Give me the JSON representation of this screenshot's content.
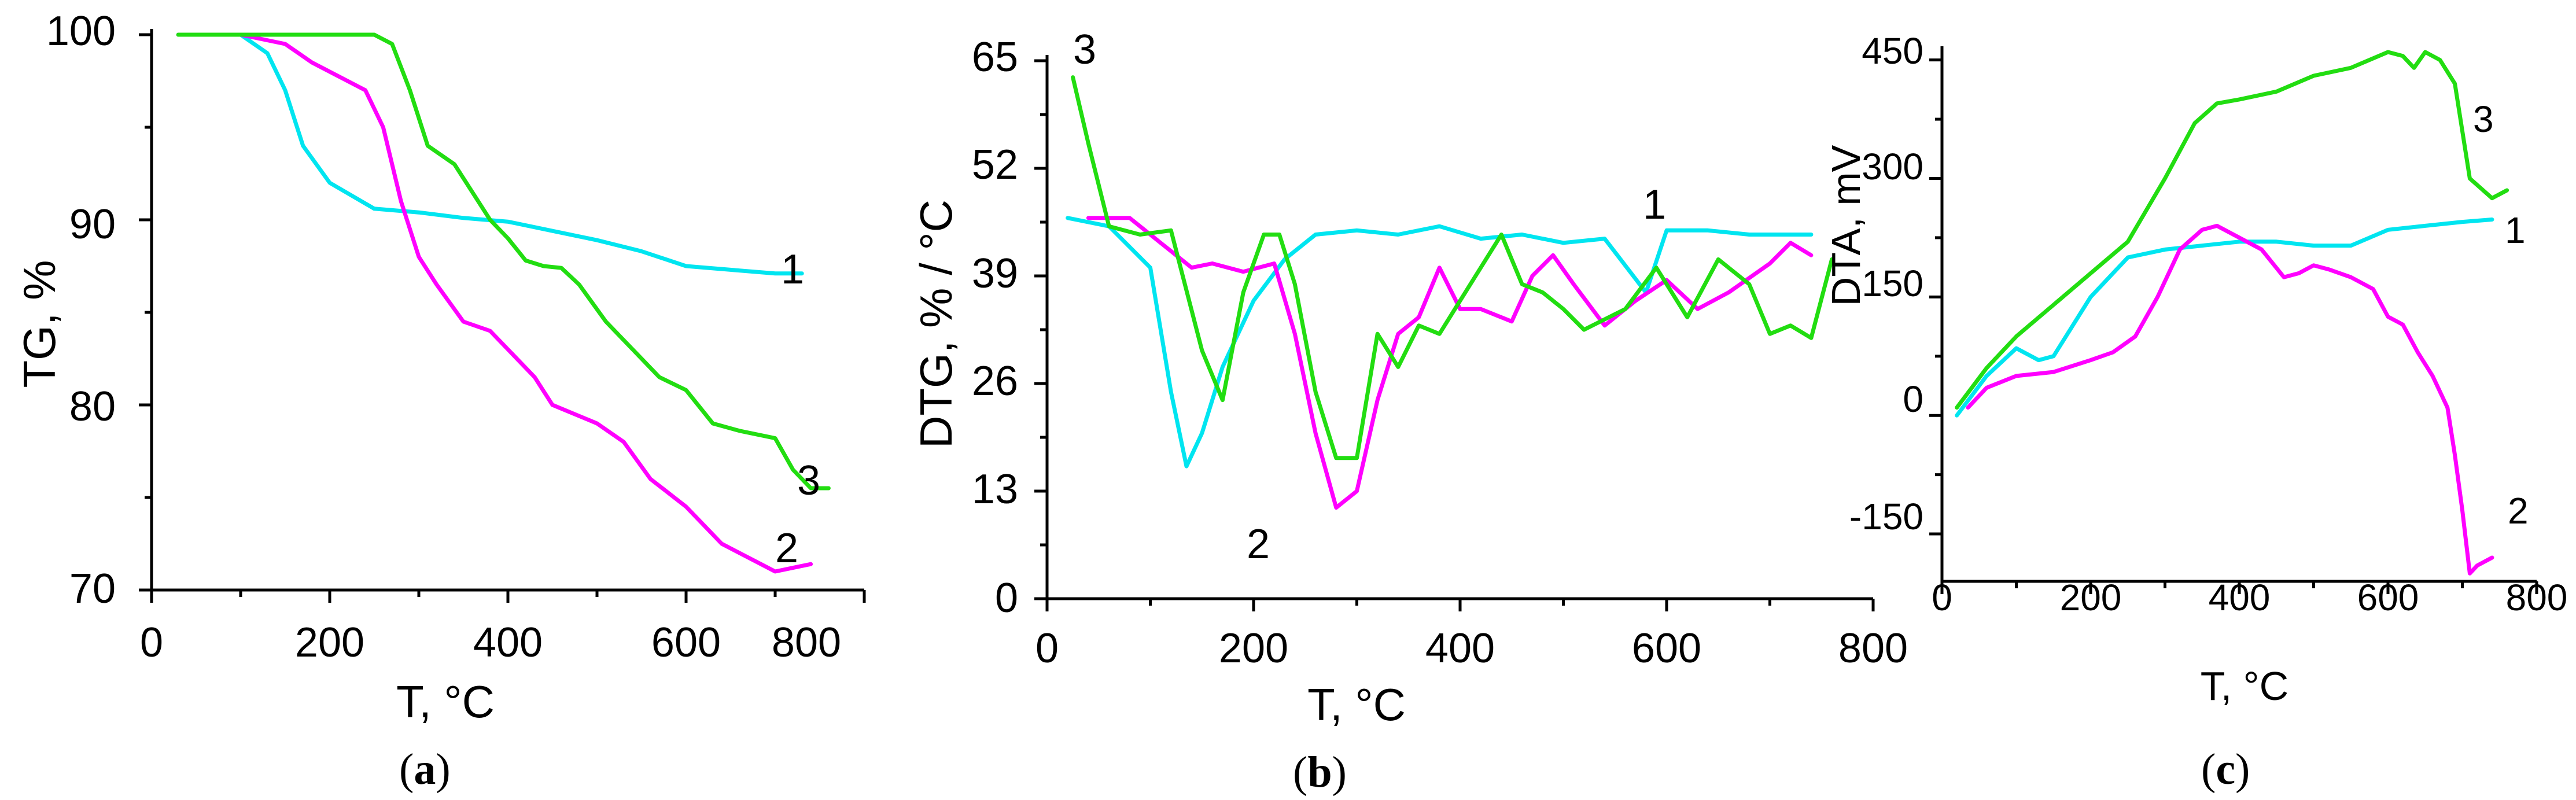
{
  "colors": {
    "series_1": "#00e5f0",
    "series_2": "#ff00ff",
    "series_3": "#22dd11"
  },
  "chart_data": [
    {
      "id": "a",
      "type": "line",
      "caption": "(a)",
      "caption_letter": "a",
      "xlabel": "T, °C",
      "ylabel": "TG, %",
      "xlim": [
        0,
        800
      ],
      "ylim": [
        70,
        100
      ],
      "xticks": [
        0,
        200,
        400,
        600,
        800
      ],
      "yticks": [
        70,
        80,
        90,
        100
      ],
      "series": [
        {
          "name": "1",
          "color": "#00e5f0",
          "x": [
            30,
            100,
            130,
            150,
            170,
            200,
            250,
            300,
            350,
            400,
            450,
            500,
            550,
            600,
            650,
            700,
            730
          ],
          "y": [
            100,
            100,
            99,
            97,
            94,
            92,
            90.6,
            90.4,
            90.1,
            89.9,
            89.4,
            88.9,
            88.3,
            87.5,
            87.3,
            87.1,
            87.1
          ]
        },
        {
          "name": "2",
          "color": "#ff00ff",
          "x": [
            30,
            100,
            150,
            180,
            200,
            220,
            240,
            260,
            280,
            300,
            320,
            350,
            380,
            400,
            430,
            450,
            500,
            530,
            560,
            600,
            640,
            680,
            700,
            720,
            740
          ],
          "y": [
            100,
            100,
            99.5,
            98.5,
            98,
            97.5,
            97,
            95,
            91,
            88,
            86.5,
            84.5,
            84,
            83,
            81.5,
            80,
            79,
            78,
            76,
            74.5,
            72.5,
            71.5,
            71,
            71.2,
            71.4
          ]
        },
        {
          "name": "3",
          "color": "#22dd11",
          "x": [
            30,
            100,
            200,
            250,
            270,
            290,
            310,
            340,
            360,
            380,
            400,
            420,
            440,
            460,
            480,
            510,
            540,
            570,
            600,
            630,
            660,
            680,
            700,
            720,
            740,
            760
          ],
          "y": [
            100,
            100,
            100,
            100,
            99.5,
            97,
            94,
            93,
            91.5,
            90,
            89,
            87.8,
            87.5,
            87.4,
            86.5,
            84.5,
            83,
            81.5,
            80.8,
            79,
            78.6,
            78.4,
            78.2,
            76.5,
            75.5,
            75.5
          ]
        }
      ],
      "end_labels": [
        "1",
        "3",
        "2"
      ]
    },
    {
      "id": "b",
      "type": "line",
      "caption": "(b)",
      "caption_letter": "b",
      "xlabel": "T, °C",
      "ylabel": "DTG, % / °C",
      "xlim": [
        0,
        800
      ],
      "ylim": [
        0,
        65
      ],
      "xticks": [
        0,
        200,
        400,
        600,
        800
      ],
      "yticks": [
        0,
        13,
        26,
        39,
        52,
        65
      ],
      "series": [
        {
          "name": "1",
          "color": "#00e5f0",
          "x": [
            20,
            60,
            100,
            120,
            135,
            150,
            170,
            200,
            230,
            260,
            300,
            340,
            380,
            420,
            460,
            500,
            540,
            580,
            600,
            640,
            680,
            720,
            740
          ],
          "y": [
            46,
            45,
            40,
            25,
            16,
            20,
            28,
            36,
            41,
            44,
            44.5,
            44,
            45,
            43.5,
            44,
            43,
            43.5,
            37,
            44.5,
            44.5,
            44,
            44,
            44
          ]
        },
        {
          "name": "2",
          "color": "#ff00ff",
          "x": [
            40,
            80,
            110,
            140,
            160,
            190,
            220,
            240,
            260,
            280,
            300,
            320,
            340,
            360,
            380,
            400,
            420,
            450,
            470,
            490,
            510,
            540,
            570,
            600,
            630,
            660,
            700,
            720,
            740
          ],
          "y": [
            46,
            46,
            43,
            40,
            40.5,
            39.5,
            40.5,
            32,
            20,
            11,
            13,
            24,
            32,
            34,
            40,
            35,
            35,
            33.5,
            39,
            41.5,
            38,
            33,
            36,
            38.5,
            35,
            37,
            40.5,
            43,
            41.5
          ]
        },
        {
          "name": "3",
          "color": "#22dd11",
          "x": [
            25,
            40,
            60,
            90,
            120,
            150,
            170,
            190,
            210,
            225,
            240,
            260,
            280,
            300,
            320,
            340,
            360,
            380,
            400,
            420,
            440,
            460,
            480,
            500,
            520,
            560,
            590,
            620,
            650,
            680,
            700,
            720,
            740,
            760
          ],
          "y": [
            63,
            55,
            45,
            44,
            44.5,
            30,
            24,
            37,
            44,
            44,
            38,
            25,
            17,
            17,
            32,
            28,
            33,
            32,
            36,
            40,
            44,
            38,
            37,
            35,
            32.5,
            35,
            40,
            34,
            41,
            38,
            32,
            33,
            31.5,
            41
          ]
        }
      ],
      "end_labels": [
        "1",
        "3",
        "2"
      ]
    },
    {
      "id": "c",
      "type": "line",
      "caption": "(c)",
      "caption_letter": "c",
      "xlabel": "T, °C",
      "ylabel": "DTA, mV",
      "xlim": [
        0,
        800
      ],
      "ylim": [
        -210,
        460
      ],
      "xticks": [
        0,
        200,
        400,
        600,
        800
      ],
      "yticks": [
        -150,
        0,
        150,
        300,
        450
      ],
      "series": [
        {
          "name": "1",
          "color": "#00e5f0",
          "x": [
            20,
            60,
            100,
            130,
            150,
            200,
            250,
            300,
            350,
            400,
            450,
            500,
            550,
            600,
            650,
            700,
            740
          ],
          "y": [
            0,
            50,
            85,
            70,
            75,
            150,
            200,
            210,
            215,
            220,
            220,
            215,
            215,
            235,
            240,
            245,
            248
          ]
        },
        {
          "name": "2",
          "color": "#ff00ff",
          "x": [
            35,
            60,
            100,
            150,
            200,
            230,
            260,
            290,
            320,
            350,
            370,
            400,
            430,
            460,
            480,
            500,
            520,
            550,
            580,
            600,
            620,
            640,
            660,
            680,
            690,
            700,
            710,
            720,
            740
          ],
          "y": [
            10,
            35,
            50,
            55,
            70,
            80,
            100,
            150,
            210,
            235,
            240,
            225,
            210,
            175,
            180,
            190,
            185,
            175,
            160,
            125,
            115,
            80,
            50,
            10,
            -50,
            -120,
            -200,
            -190,
            -180
          ]
        },
        {
          "name": "3",
          "color": "#22dd11",
          "x": [
            20,
            60,
            100,
            150,
            200,
            250,
            300,
            340,
            370,
            400,
            450,
            500,
            550,
            600,
            620,
            635,
            650,
            670,
            690,
            710,
            740,
            760
          ],
          "y": [
            10,
            60,
            100,
            140,
            180,
            220,
            300,
            370,
            395,
            400,
            410,
            430,
            440,
            460,
            455,
            440,
            460,
            450,
            420,
            300,
            275,
            285
          ]
        }
      ],
      "end_labels": [
        "3",
        "1",
        "2"
      ]
    }
  ]
}
